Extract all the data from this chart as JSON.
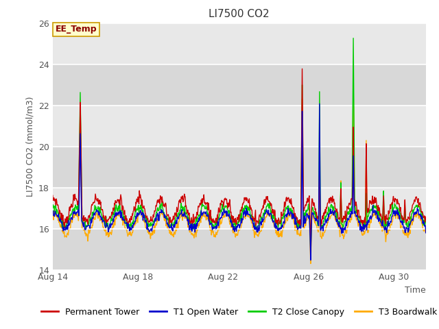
{
  "title": "LI7500 CO2",
  "ylabel": "LI7500 CO2 (mmol/m3)",
  "xlabel": "Time",
  "ylim": [
    14,
    26
  ],
  "xtick_labels": [
    "Aug 14",
    "Aug 18",
    "Aug 22",
    "Aug 26",
    "Aug 30"
  ],
  "ytick_values": [
    14,
    16,
    18,
    20,
    22,
    24,
    26
  ],
  "series_colors": {
    "permanent_tower": "#cc0000",
    "t1_open_water": "#0000cc",
    "t2_close_canopy": "#00cc00",
    "t3_boardwalk": "#ffaa00"
  },
  "legend_labels": [
    "Permanent Tower",
    "T1 Open Water",
    "T2 Close Canopy",
    "T3 Boardwalk"
  ],
  "annotation_text": "EE_Temp",
  "bg_color_light": "#e8e8e8",
  "bg_color_dark": "#d8d8d8",
  "title_fontsize": 11,
  "axis_label_fontsize": 9,
  "tick_fontsize": 9,
  "legend_fontsize": 9,
  "line_width": 1.0
}
